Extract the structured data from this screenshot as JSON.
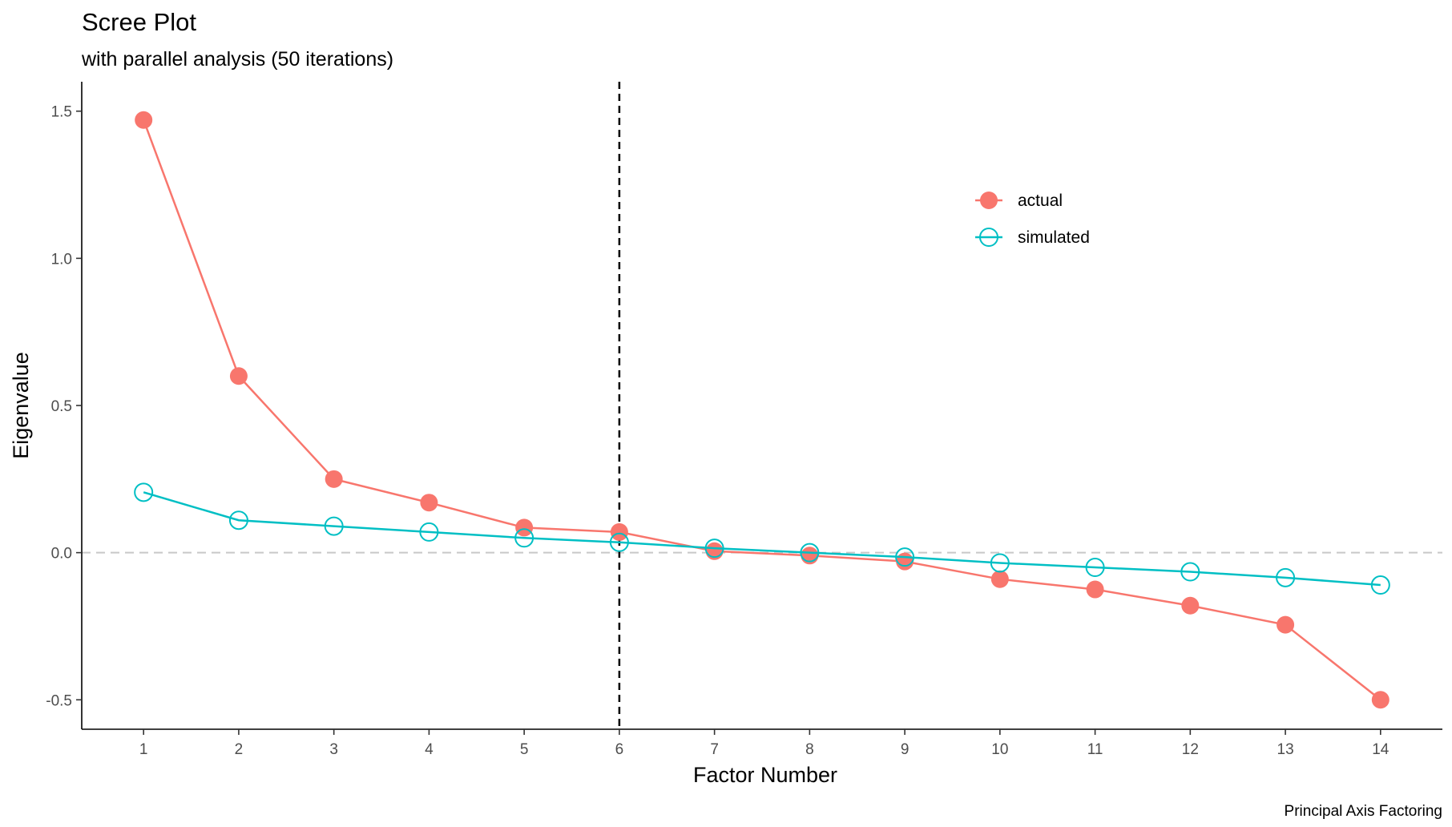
{
  "chart_data": {
    "type": "line",
    "title": "Scree Plot",
    "subtitle": "with parallel analysis (50 iterations)",
    "caption": "Principal Axis Factoring",
    "xlabel": "Factor Number",
    "ylabel": "Eigenvalue",
    "x": [
      1,
      2,
      3,
      4,
      5,
      6,
      7,
      8,
      9,
      10,
      11,
      12,
      13,
      14
    ],
    "x_ticks": [
      "1",
      "2",
      "3",
      "4",
      "5",
      "6",
      "7",
      "8",
      "9",
      "10",
      "11",
      "12",
      "13",
      "14"
    ],
    "y_ticks": [
      "-0.5",
      "0.0",
      "0.5",
      "1.0",
      "1.5"
    ],
    "y_tick_values": [
      -0.5,
      0.0,
      0.5,
      1.0,
      1.5
    ],
    "xlim": [
      0.35,
      14.65
    ],
    "ylim": [
      -0.6,
      1.6
    ],
    "series": [
      {
        "name": "actual",
        "color": "#F8766D",
        "marker": "filled-circle",
        "values": [
          1.47,
          0.6,
          0.25,
          0.17,
          0.085,
          0.07,
          0.005,
          -0.01,
          -0.03,
          -0.09,
          -0.125,
          -0.18,
          -0.245,
          -0.5
        ]
      },
      {
        "name": "simulated",
        "color": "#00BFC4",
        "marker": "open-circle",
        "values": [
          0.205,
          0.11,
          0.09,
          0.07,
          0.05,
          0.035,
          0.015,
          0.0,
          -0.015,
          -0.035,
          -0.05,
          -0.065,
          -0.085,
          -0.11
        ]
      }
    ],
    "reference_lines": {
      "vertical_x": 6,
      "vertical_style": "dashed-black",
      "horizontal_y": 0,
      "horizontal_style": "dashed-grey"
    },
    "legend_position": "upper-right-inside",
    "grid": false
  }
}
